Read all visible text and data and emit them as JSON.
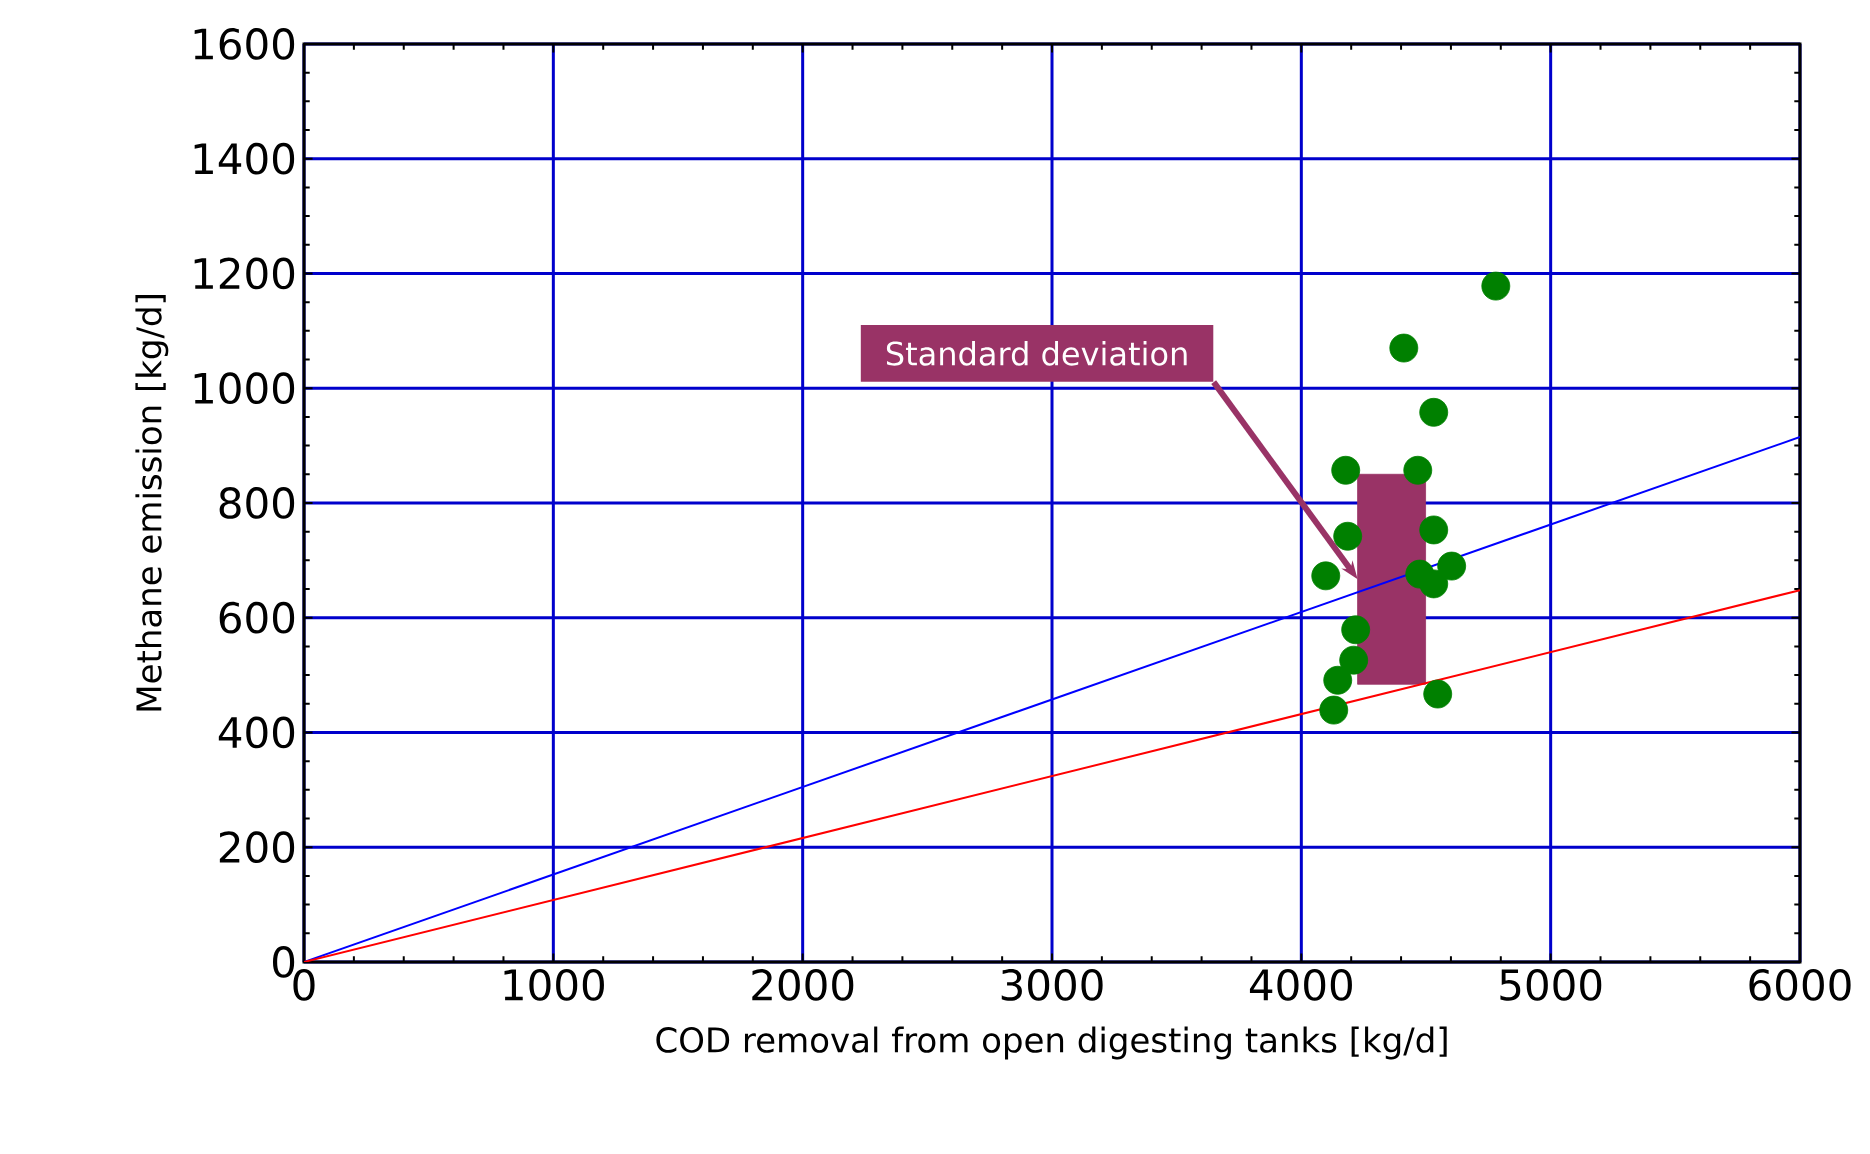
{
  "chart_data": {
    "type": "scatter",
    "xlabel": "COD removal from open digesting tanks [kg/d]",
    "ylabel": "Methane emission [kg/d]",
    "xlim": [
      0,
      6000
    ],
    "ylim": [
      0,
      1600
    ],
    "xticks": [
      0,
      1000,
      2000,
      3000,
      4000,
      5000,
      6000
    ],
    "yticks": [
      0,
      200,
      400,
      600,
      800,
      1000,
      1200,
      1400,
      1600
    ],
    "grid": true,
    "annotations": [
      {
        "text": "Standard deviation",
        "x": 4226,
        "y": 667
      }
    ],
    "series": [
      {
        "type": "bar",
        "color": "#993366",
        "x": [
          4362
        ],
        "base": [
          484
        ],
        "values": [
          366
        ]
      },
      {
        "type": "line",
        "color": "#0000ff",
        "x": [
          0,
          6000
        ],
        "values": [
          0,
          915
        ],
        "marker": "none"
      },
      {
        "type": "line",
        "color": "#ff0000",
        "x": [
          0,
          6000
        ],
        "values": [
          0,
          648
        ],
        "marker": "none"
      },
      {
        "color": "#008000",
        "marker": "circle",
        "x": [
          4780,
          4411,
          4531,
          4178,
          4467,
          4186,
          4531,
          4098,
          4603,
          4531,
          4218,
          4210,
          4146,
          4547,
          4130,
          4475
        ],
        "values": [
          1178,
          1070,
          958,
          857,
          857,
          742,
          753,
          673,
          690,
          659,
          579,
          526,
          491,
          467,
          439,
          676
        ]
      }
    ]
  }
}
